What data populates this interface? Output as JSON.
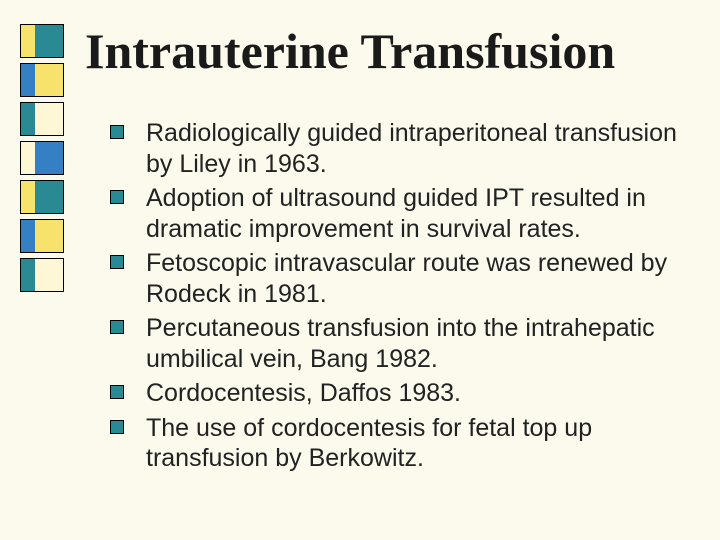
{
  "title": "Intrauterine Transfusion",
  "title_color": "#1a1a1a",
  "title_fontsize": 50,
  "background_color": "#fbfaed",
  "sidebar_blocks": [
    {
      "left": "#f7e36b",
      "right": "#2a8a93"
    },
    {
      "left": "#357fc5",
      "right": "#f7e36b"
    },
    {
      "left": "#2a8a93",
      "right": "#fdf7d6"
    },
    {
      "left": "#fdf7d6",
      "right": "#357fc5"
    },
    {
      "left": "#f7e36b",
      "right": "#2a8a93"
    },
    {
      "left": "#357fc5",
      "right": "#f7e36b"
    },
    {
      "left": "#2a8a93",
      "right": "#fdf7d6"
    }
  ],
  "bullet_color": "#2a8a93",
  "text_color": "#222222",
  "item_fontsize": 25,
  "items": [
    "Radiologically guided intraperitoneal transfusion by Liley in 1963.",
    "Adoption of ultrasound guided IPT resulted in dramatic improvement in survival rates.",
    "Fetoscopic intravascular route was renewed by Rodeck in 1981.",
    "Percutaneous transfusion into the intrahepatic umbilical vein, Bang 1982.",
    "Cordocentesis, Daffos 1983.",
    "The use of cordocentesis for fetal top up transfusion by Berkowitz."
  ]
}
